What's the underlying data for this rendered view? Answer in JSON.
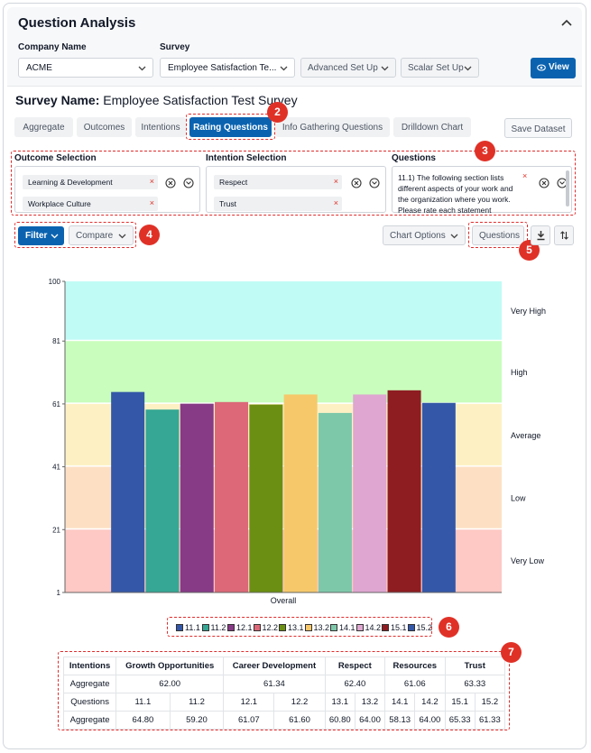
{
  "header": {
    "title": "Question Analysis"
  },
  "filters": {
    "company_label": "Company Name",
    "company_value": "ACME",
    "survey_label": "Survey",
    "survey_value": "Employee Satisfaction Te...",
    "advanced_label": "Advanced Set Up",
    "scalar_label": "Scalar Set Up",
    "view_label": "View"
  },
  "survey": {
    "name_label": "Survey Name:",
    "name_value": "Employee Satisfaction Test Survey"
  },
  "tabs": [
    {
      "label": "Aggregate"
    },
    {
      "label": "Outcomes"
    },
    {
      "label": "Intentions"
    },
    {
      "label": "Rating Questions"
    },
    {
      "label": "Info Gathering Questions"
    },
    {
      "label": "Drilldown Chart"
    }
  ],
  "save_dataset_label": "Save Dataset",
  "selections": {
    "outcome_title": "Outcome Selection",
    "outcome_items": [
      "Learning & Development",
      "Workplace Culture"
    ],
    "intention_title": "Intention Selection",
    "intention_items": [
      "Respect",
      "Trust"
    ],
    "questions_title": "Questions",
    "question_text": "11.1) The following section lists different aspects of your work and the organization where you work. Please rate each statement"
  },
  "toolbar": {
    "filter_label": "Filter",
    "compare_label": "Compare",
    "chart_options_label": "Chart Options",
    "questions_label": "Questions"
  },
  "badges": [
    "2",
    "3",
    "4",
    "5",
    "6",
    "7"
  ],
  "chart_data": {
    "type": "bar",
    "categories": [
      "Overall"
    ],
    "series": [
      {
        "name": "11.1",
        "color": "#3457a8",
        "values": [
          64.8
        ]
      },
      {
        "name": "11.2",
        "color": "#35a794",
        "values": [
          59.2
        ]
      },
      {
        "name": "12.1",
        "color": "#873a86",
        "values": [
          61.07
        ]
      },
      {
        "name": "12.2",
        "color": "#dc6878",
        "values": [
          61.6
        ]
      },
      {
        "name": "13.1",
        "color": "#6b8f12",
        "values": [
          60.8
        ]
      },
      {
        "name": "13.2",
        "color": "#f6c86a",
        "values": [
          64.0
        ]
      },
      {
        "name": "14.1",
        "color": "#7ec8aa",
        "values": [
          58.13
        ]
      },
      {
        "name": "14.2",
        "color": "#dea6d0",
        "values": [
          64.0
        ]
      },
      {
        "name": "15.1",
        "color": "#8e1d22",
        "values": [
          65.33
        ]
      },
      {
        "name": "15.2",
        "color": "#3457a8",
        "values": [
          61.33
        ]
      }
    ],
    "ylim": [
      1,
      100
    ],
    "yticks": [
      "100",
      "81",
      "61",
      "41",
      "21",
      "1"
    ],
    "ytick_values": [
      100,
      81,
      61,
      41,
      21,
      1
    ],
    "bands": [
      {
        "label": "Very High",
        "from": 81,
        "to": 100,
        "color": "#c0fbf5"
      },
      {
        "label": "High",
        "from": 61,
        "to": 81,
        "color": "#c9fdbd"
      },
      {
        "label": "Average",
        "from": 41,
        "to": 61,
        "color": "#fdf1c4"
      },
      {
        "label": "Low",
        "from": 21,
        "to": 41,
        "color": "#fde0c4"
      },
      {
        "label": "Very Low",
        "from": 1,
        "to": 21,
        "color": "#fec8c4"
      }
    ],
    "legend": "bottom"
  },
  "summary_table": {
    "header": [
      "Intentions",
      "Growth Opportunities",
      "Career Development",
      "Respect",
      "Resources",
      "Trust"
    ],
    "aggregate_row_label": "Aggregate",
    "intention_aggregates": [
      "62.00",
      "61.34",
      "62.40",
      "61.06",
      "63.33"
    ],
    "questions_row_label": "Questions",
    "questions": [
      "11.1",
      "11.2",
      "12.1",
      "12.2",
      "13.1",
      "13.2",
      "14.1",
      "14.2",
      "15.1",
      "15.2"
    ],
    "question_row_label": "Aggregate",
    "question_aggregates": [
      "64.80",
      "59.20",
      "61.07",
      "61.60",
      "60.80",
      "64.00",
      "58.13",
      "64.00",
      "65.33",
      "61.33"
    ]
  }
}
